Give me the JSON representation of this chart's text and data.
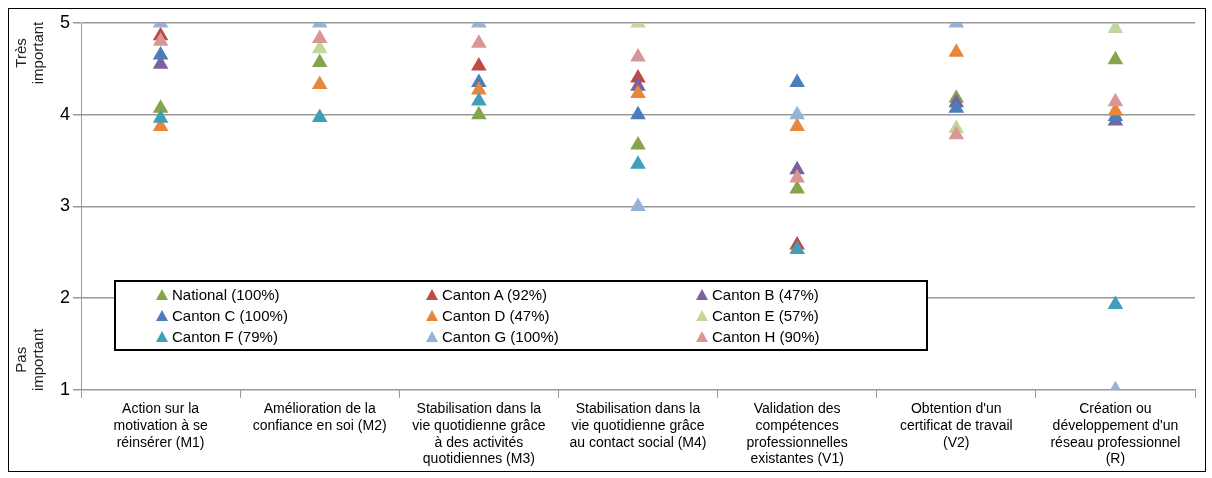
{
  "chart_data": {
    "type": "scatter",
    "categories": [
      "Action sur la motivation à se réinsérer (M1)",
      "Amélioration de la confiance en soi (M2)",
      "Stabilisation dans la vie quotidienne grâce à des activités quotidiennes (M3)",
      "Stabilisation dans la vie quotidienne grâce au contact social (M4)",
      "Validation des compétences professionnelles existantes (V1)",
      "Obtention d'un certificat de travail (V2)",
      "Création ou développement d'un réseau professionnel (R)"
    ],
    "series": [
      {
        "name": "National (100%)",
        "color": "#86a44a",
        "values": [
          4.07,
          4.57,
          4.0,
          3.67,
          3.19,
          4.18,
          4.6
        ]
      },
      {
        "name": "Canton A (92%)",
        "color": "#be4b48",
        "values": [
          4.86,
          null,
          4.53,
          4.4,
          2.58,
          null,
          null
        ]
      },
      {
        "name": "Canton B (47%)",
        "color": "#7d60a0",
        "values": [
          4.55,
          null,
          null,
          4.31,
          3.4,
          4.13,
          3.93
        ]
      },
      {
        "name": "Canton C (100%)",
        "color": "#4a7ebb",
        "values": [
          4.65,
          null,
          4.35,
          4.0,
          4.35,
          4.07,
          3.98
        ]
      },
      {
        "name": "Canton D (47%)",
        "color": "#e8863a",
        "values": [
          3.87,
          4.33,
          4.27,
          4.23,
          3.87,
          4.68,
          4.04
        ]
      },
      {
        "name": "Canton E (57%)",
        "color": "#c3d69b",
        "values": [
          null,
          4.72,
          null,
          5.0,
          null,
          3.85,
          4.94
        ]
      },
      {
        "name": "Canton F (79%)",
        "color": "#3f9fb6",
        "values": [
          3.96,
          3.97,
          4.15,
          3.46,
          2.53,
          null,
          1.93
        ]
      },
      {
        "name": "Canton G (100%)",
        "color": "#95b3d7",
        "values": [
          5.0,
          5.0,
          5.0,
          3.0,
          4.0,
          5.0,
          1.0
        ]
      },
      {
        "name": "Canton H (90%)",
        "color": "#d99694",
        "values": [
          4.8,
          4.83,
          4.78,
          4.63,
          3.31,
          3.78,
          4.14
        ]
      }
    ],
    "ylim": [
      1,
      5
    ],
    "yticks": [
      1,
      2,
      3,
      4,
      5
    ],
    "grid": "y",
    "legend": "bottom left",
    "marker": "triangle",
    "annotations": [
      "Très important",
      "Pas important"
    ]
  }
}
